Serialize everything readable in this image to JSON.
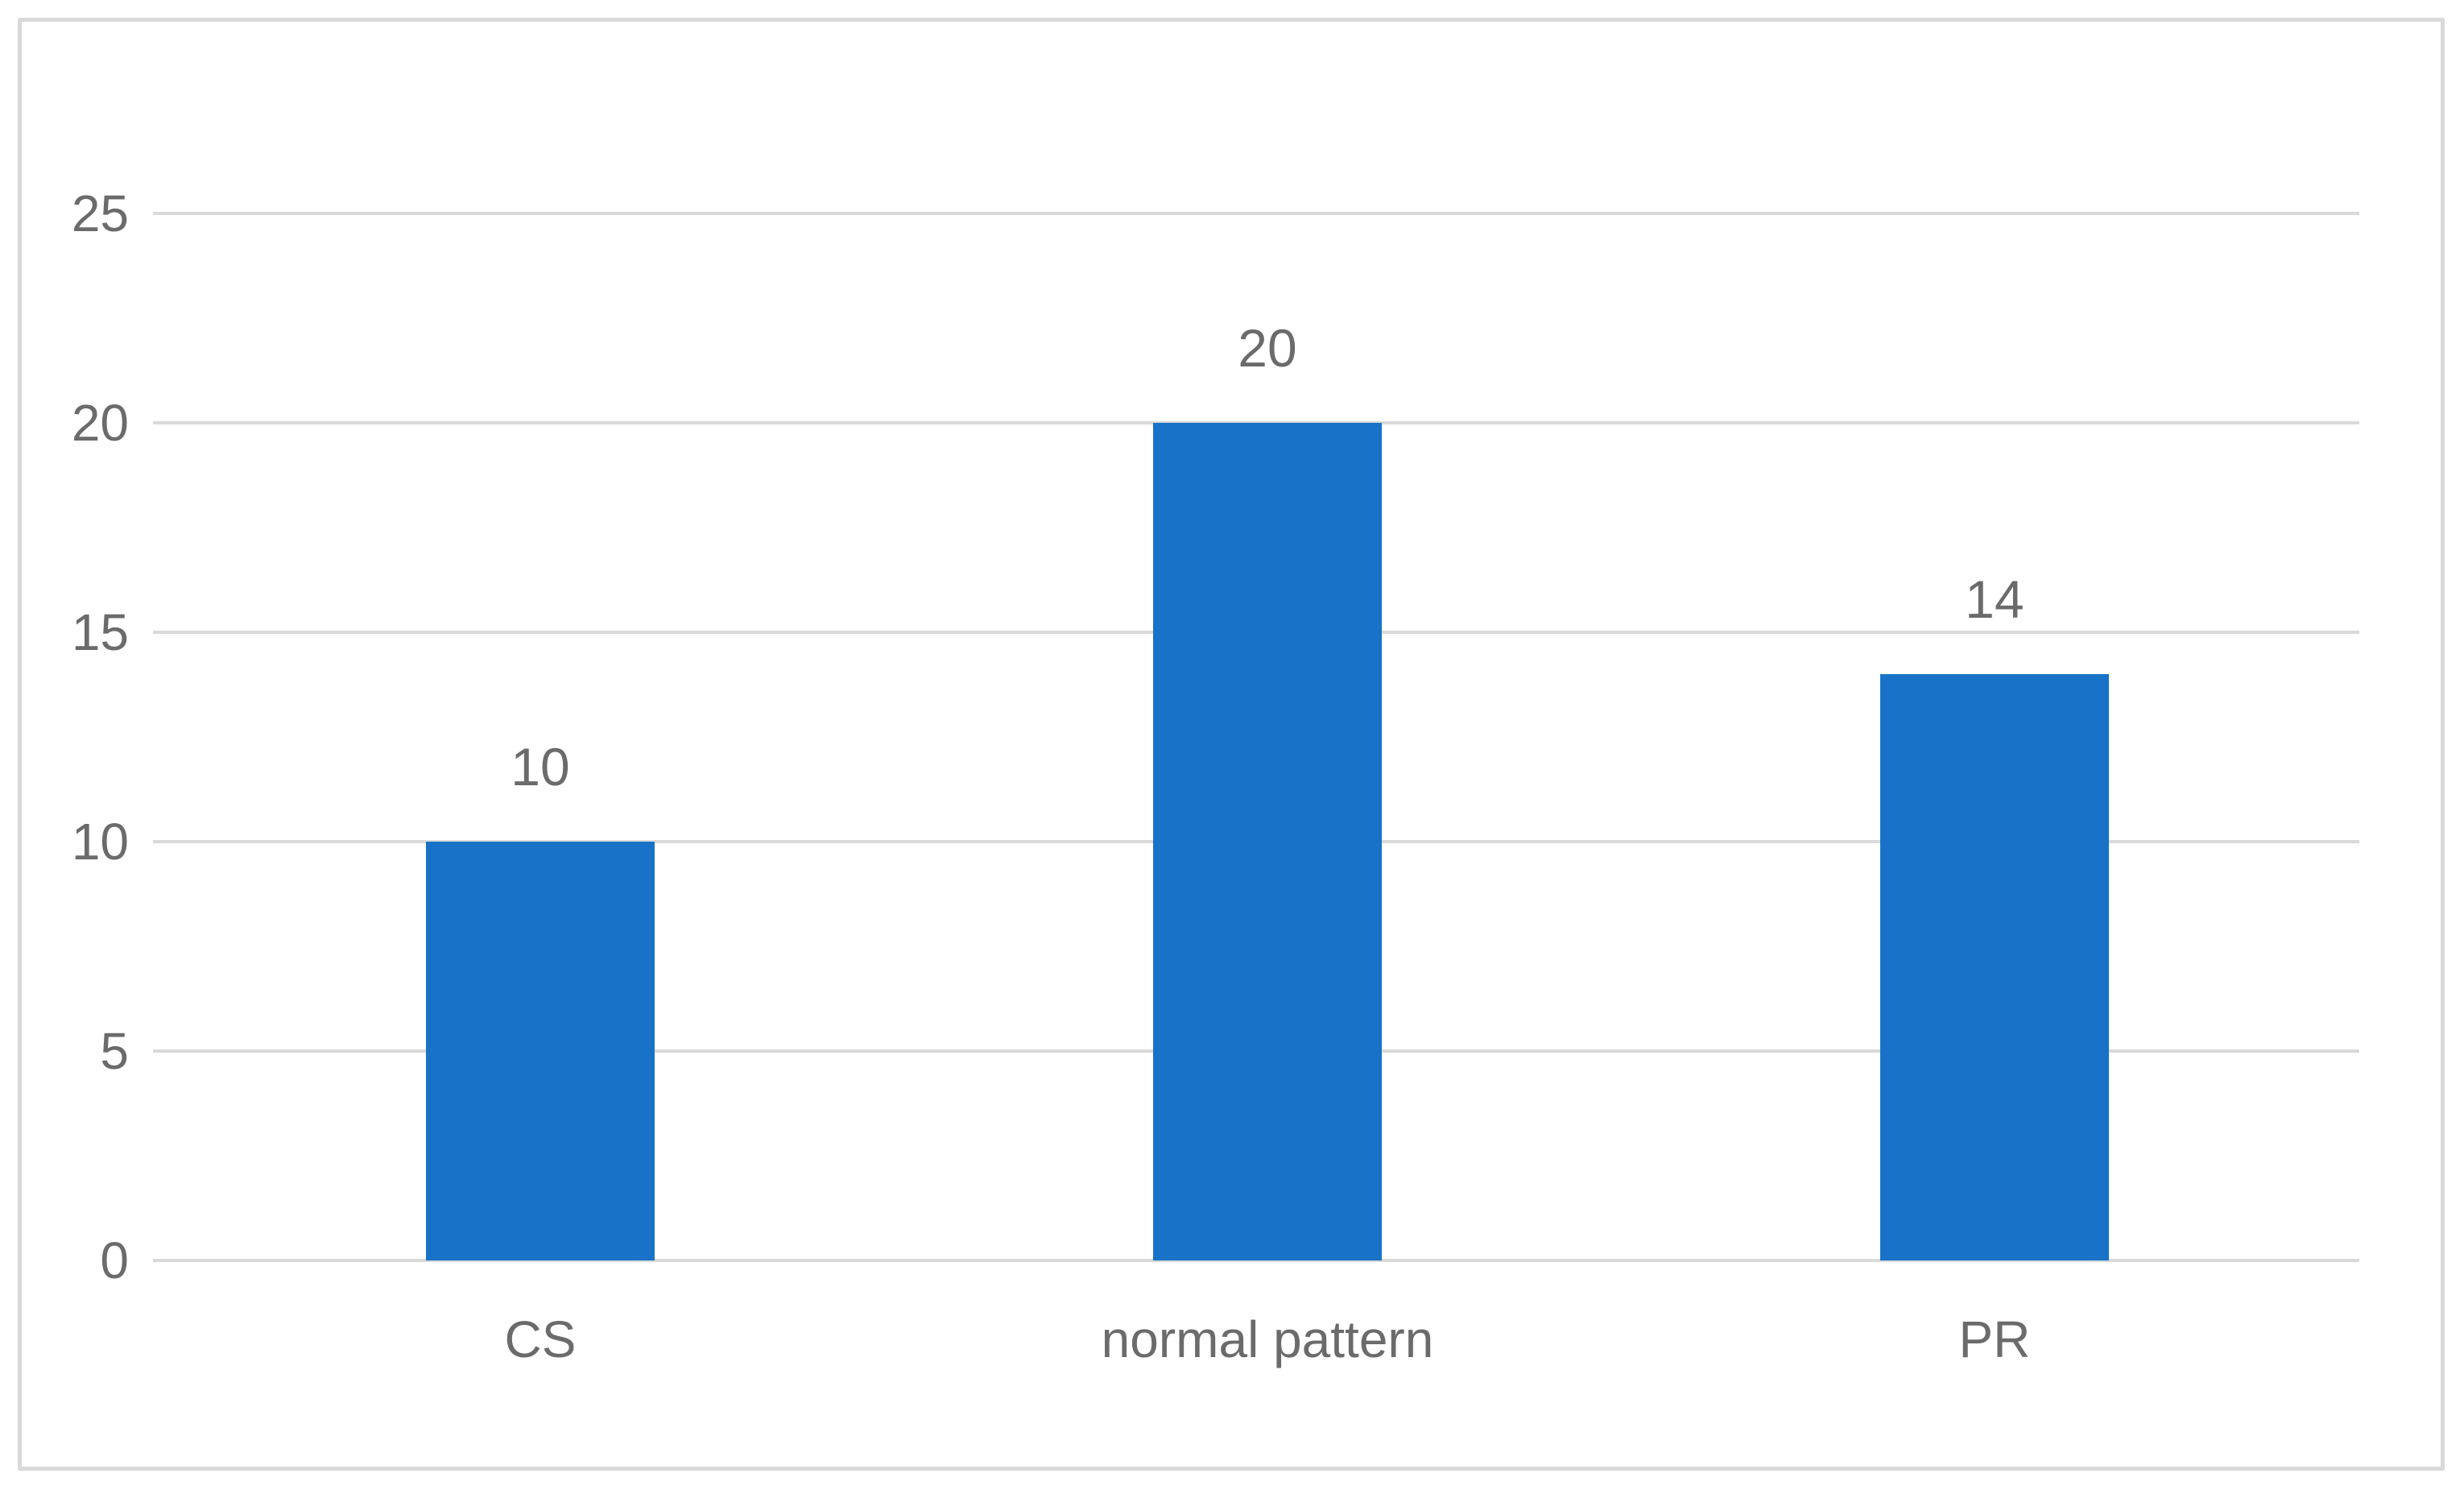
{
  "chart_data": {
    "type": "bar",
    "categories": [
      "CS",
      "normal pattern",
      "PR"
    ],
    "values": [
      10,
      20,
      14
    ],
    "data_labels": [
      "10",
      "20",
      "14"
    ],
    "title": "",
    "xlabel": "",
    "ylabel": "",
    "ylim": [
      0,
      25
    ],
    "yticks": [
      0,
      5,
      10,
      15,
      20,
      25
    ],
    "grid": "horizontal-only",
    "legend": "none",
    "colors": {
      "bar_fill": "#1873C8",
      "gridline": "#D9D9D9",
      "frame_border": "#D9D9D9",
      "label_text": "#6B6B6B",
      "background": "#FFFFFF"
    }
  }
}
